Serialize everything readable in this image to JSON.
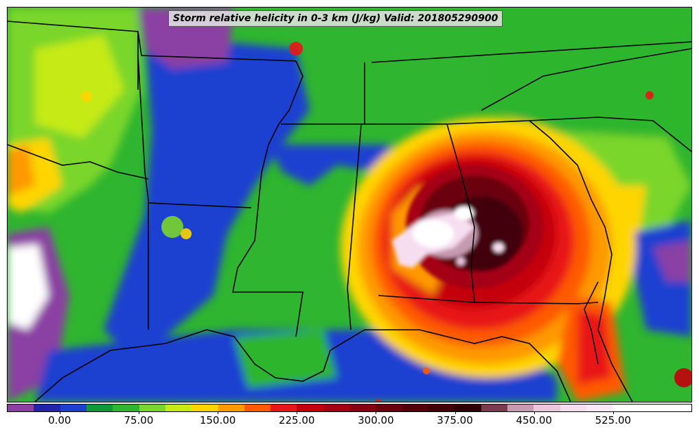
{
  "title": "Storm relative helicity in 0-3 km (J/kg) Valid: 201805290900",
  "colorbar": {
    "min": -50,
    "max": 600,
    "step": 25,
    "colors": [
      "#8b3fa3",
      "#2222aa",
      "#1f3fd0",
      "#0f9a3a",
      "#2fb52f",
      "#7ad62a",
      "#c6ea12",
      "#ffd500",
      "#ff9900",
      "#ff5a00",
      "#e81616",
      "#c4000c",
      "#a40012",
      "#880010",
      "#6a000c",
      "#54000a",
      "#420008",
      "#2e0006",
      "#7a3a50",
      "#c79ab0",
      "#ecc6dc",
      "#f6def0",
      "#fbe9f7",
      "#ffffff",
      "#ffffff",
      "#ffffff"
    ],
    "tick_values": [
      0,
      75,
      150,
      225,
      300,
      375,
      450,
      525
    ],
    "tick_labels": [
      "0.00",
      "75.00",
      "150.00",
      "225.00",
      "300.00",
      "375.00",
      "450.00",
      "525.00"
    ]
  }
}
